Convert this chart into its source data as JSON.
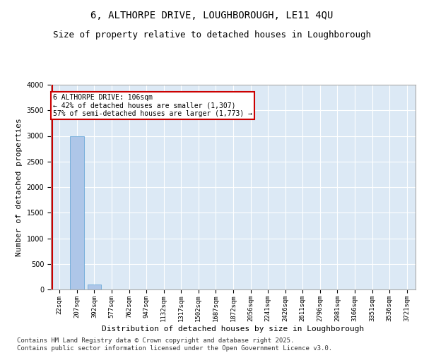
{
  "title": "6, ALTHORPE DRIVE, LOUGHBOROUGH, LE11 4QU",
  "subtitle": "Size of property relative to detached houses in Loughborough",
  "xlabel": "Distribution of detached houses by size in Loughborough",
  "ylabel": "Number of detached properties",
  "footer_line1": "Contains HM Land Registry data © Crown copyright and database right 2025.",
  "footer_line2": "Contains public sector information licensed under the Open Government Licence v3.0.",
  "categories": [
    "22sqm",
    "207sqm",
    "392sqm",
    "577sqm",
    "762sqm",
    "947sqm",
    "1132sqm",
    "1317sqm",
    "1502sqm",
    "1687sqm",
    "1872sqm",
    "2056sqm",
    "2241sqm",
    "2426sqm",
    "2611sqm",
    "2796sqm",
    "2981sqm",
    "3166sqm",
    "3351sqm",
    "3536sqm",
    "3721sqm"
  ],
  "values": [
    0,
    3000,
    100,
    0,
    0,
    0,
    0,
    0,
    0,
    0,
    0,
    0,
    0,
    0,
    0,
    0,
    0,
    0,
    0,
    0,
    0
  ],
  "bar_color": "#aec6e8",
  "bar_edge_color": "#5a9fd4",
  "background_color": "#dce9f5",
  "grid_color": "#ffffff",
  "ylim": [
    0,
    4000
  ],
  "yticks": [
    0,
    500,
    1000,
    1500,
    2000,
    2500,
    3000,
    3500,
    4000
  ],
  "annotation_text": "6 ALTHORPE DRIVE: 106sqm\n← 42% of detached houses are smaller (1,307)\n57% of semi-detached houses are larger (1,773) →",
  "annotation_box_color": "#cc0000",
  "subject_line_color": "#cc0000",
  "title_fontsize": 10,
  "subtitle_fontsize": 9,
  "tick_fontsize": 6.5,
  "ylabel_fontsize": 8,
  "xlabel_fontsize": 8,
  "footer_fontsize": 6.5,
  "annot_fontsize": 7
}
